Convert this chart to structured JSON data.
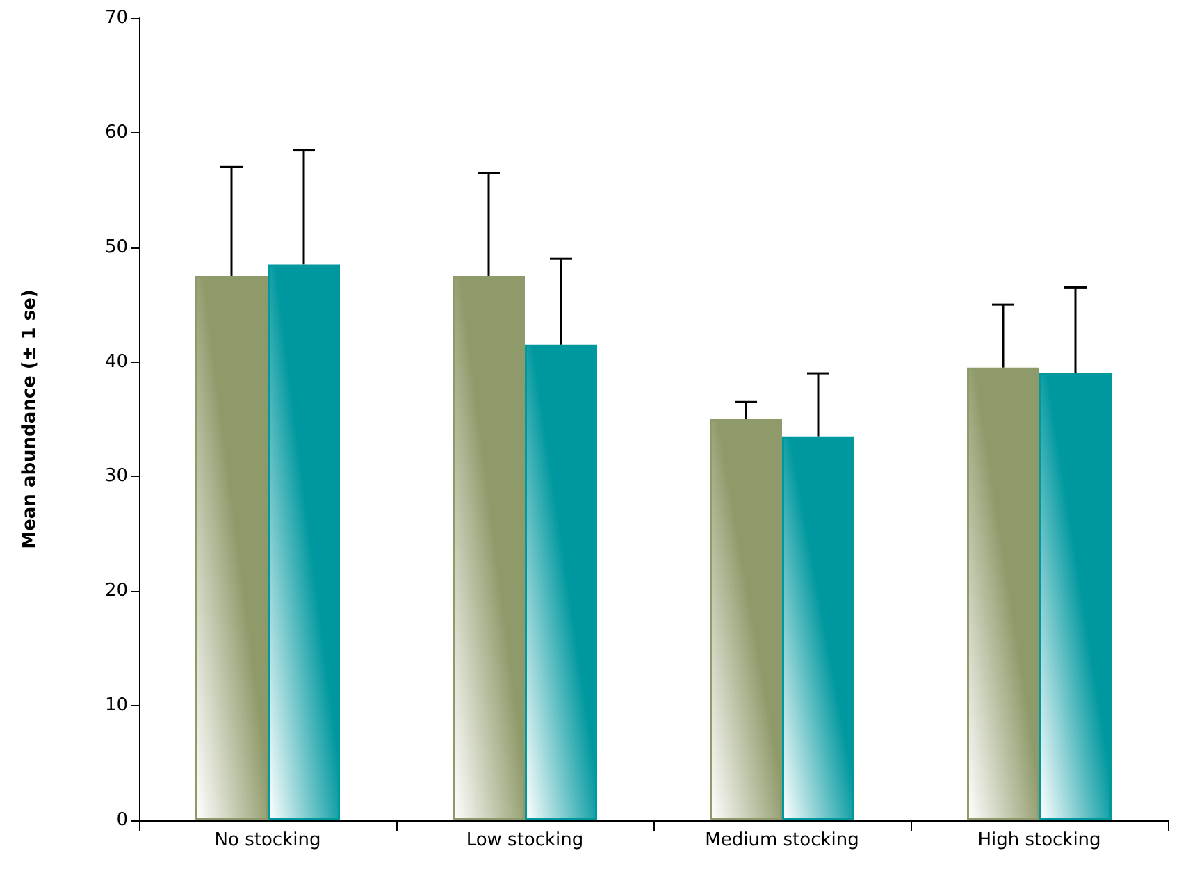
{
  "chart_data": {
    "type": "bar",
    "ylabel": "Mean abundance (± 1 se)",
    "categories": [
      "No stocking",
      "Low stocking",
      "Medium stocking",
      "High stocking"
    ],
    "series": [
      {
        "color": "#8f9a6a",
        "values": [
          47.5,
          47.5,
          35,
          39.5
        ],
        "errors": [
          [
            47.5,
            57
          ],
          [
            47.5,
            56.5
          ],
          [
            35,
            36.5
          ],
          [
            39.5,
            45
          ]
        ]
      },
      {
        "color": "#00989f",
        "values": [
          48.5,
          41.5,
          33.5,
          39
        ],
        "errors": [
          [
            48.5,
            58.5
          ],
          [
            41.5,
            49
          ],
          [
            33.5,
            39
          ],
          [
            39,
            46.5
          ]
        ]
      }
    ],
    "ylim": [
      0,
      70
    ],
    "yticks": [
      0,
      10,
      20,
      30,
      40,
      50,
      60,
      70
    ],
    "grid": false
  }
}
